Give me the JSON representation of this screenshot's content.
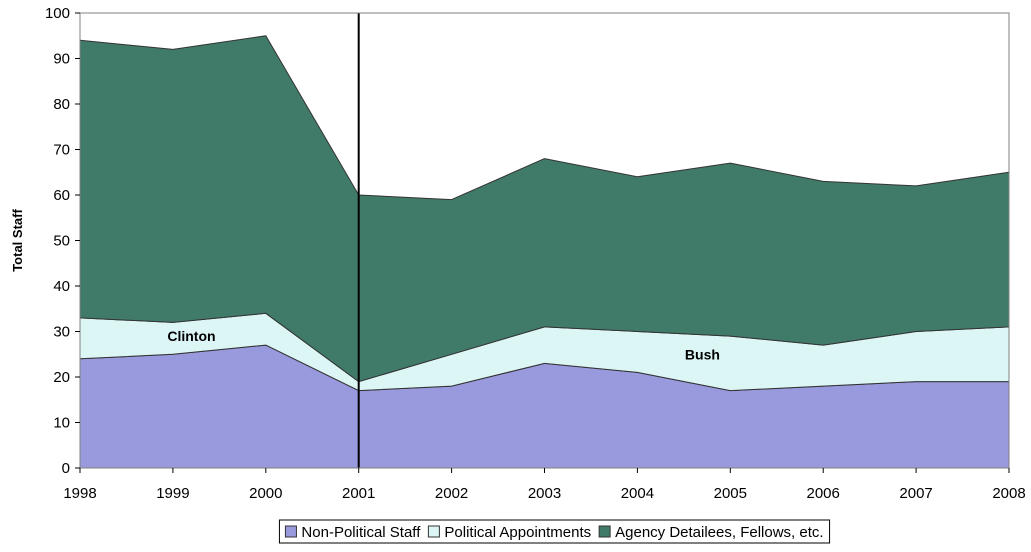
{
  "chart_data": {
    "type": "area",
    "stacked": true,
    "ylabel": "Total Staff",
    "xlabel": "",
    "ylim": [
      0,
      100
    ],
    "yticks": [
      0,
      10,
      20,
      30,
      40,
      50,
      60,
      70,
      80,
      90,
      100
    ],
    "x": [
      1998,
      1999,
      2000,
      2001,
      2002,
      2003,
      2004,
      2005,
      2006,
      2007,
      2008
    ],
    "x_labels": [
      "1998",
      "1999",
      "2000",
      "2001",
      "2002",
      "2003",
      "2004",
      "2005",
      "2006",
      "2007",
      "2008"
    ],
    "series": [
      {
        "name": "Non-Political Staff",
        "color": "#9999dd",
        "values": [
          24,
          25,
          27,
          17,
          18,
          23,
          21,
          17,
          18,
          19,
          19
        ]
      },
      {
        "name": "Political Appointments",
        "color": "#dcf6f6",
        "values": [
          9,
          7,
          7,
          2,
          7,
          8,
          9,
          12,
          9,
          11,
          12
        ]
      },
      {
        "name": "Agency Detailees, Fellows, etc.",
        "color": "#407b69",
        "values": [
          61,
          60,
          61,
          41,
          34,
          37,
          34,
          38,
          36,
          32,
          34
        ]
      }
    ],
    "annotations": [
      {
        "text": "Clinton",
        "x": 1999.2,
        "y": 29
      },
      {
        "text": "Bush",
        "x": 2004.7,
        "y": 25
      }
    ],
    "vertical_line_x": 2001,
    "grid": false,
    "legend_position": "bottom"
  }
}
